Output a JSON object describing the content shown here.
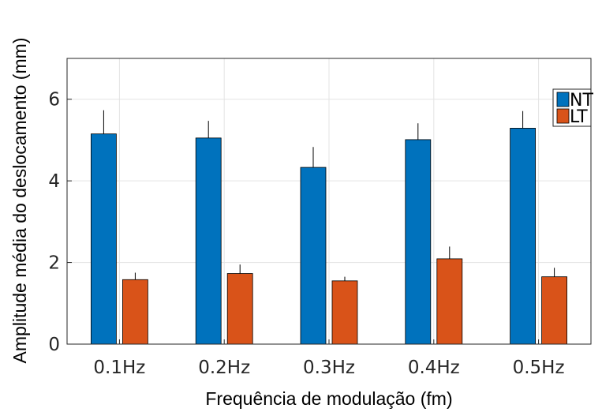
{
  "chart_data": {
    "type": "bar",
    "title": "",
    "xlabel": "Frequência de modulação (fm)",
    "ylabel": "Amplitude média do deslocamento (mm)",
    "categories": [
      "0.1Hz",
      "0.2Hz",
      "0.3Hz",
      "0.4Hz",
      "0.5Hz"
    ],
    "ylim": [
      0,
      7
    ],
    "yticks": [
      0,
      2,
      4,
      6
    ],
    "grid": true,
    "legend": "top-right",
    "series": [
      {
        "name": "NT",
        "color": "#0072BD",
        "values": [
          5.15,
          5.05,
          4.33,
          5.01,
          5.29
        ],
        "errors": [
          0.58,
          0.42,
          0.5,
          0.4,
          0.42
        ]
      },
      {
        "name": "LT",
        "color": "#D95319",
        "values": [
          1.58,
          1.73,
          1.55,
          2.09,
          1.65
        ],
        "errors": [
          0.17,
          0.22,
          0.1,
          0.3,
          0.22
        ]
      }
    ]
  }
}
